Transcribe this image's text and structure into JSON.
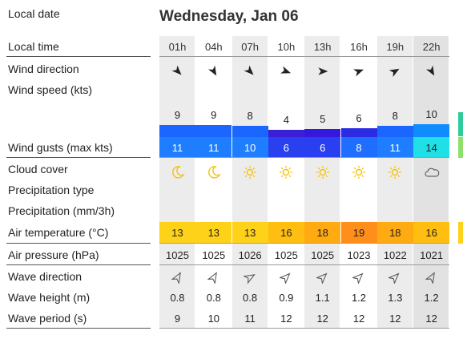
{
  "labels": {
    "local_date": "Local date",
    "local_time": "Local time",
    "wind_direction": "Wind direction",
    "wind_speed": "Wind speed  (kts)",
    "wind_gusts": "Wind gusts  (max kts)",
    "cloud_cover": "Cloud cover",
    "precip_type": "Precipitation type",
    "precipitation": "Precipitation  (mm/3h)",
    "air_temp": "Air temperature  (°C)",
    "air_pressure": "Air pressure  (hPa)",
    "wave_direction": "Wave direction",
    "wave_height": "Wave height  (m)",
    "wave_period": "Wave period  (s)"
  },
  "date": "Wednesday, Jan 06",
  "hours": [
    "01h",
    "04h",
    "07h",
    "10h",
    "13h",
    "16h",
    "19h",
    "22h"
  ],
  "wind_dir_deg": [
    135,
    150,
    135,
    110,
    90,
    70,
    60,
    150
  ],
  "wind_speed": [
    "9",
    "9",
    "8",
    "4",
    "5",
    "6",
    "8",
    "10"
  ],
  "wind_gusts": [
    "11",
    "11",
    "10",
    "6",
    "6",
    "8",
    "11",
    "14"
  ],
  "cloud_cover": [
    "moon-icon",
    "moon-icon",
    "sun-icon",
    "sun-icon",
    "sun-icon",
    "sun-icon",
    "sun-icon",
    "cloud-icon"
  ],
  "air_temp": [
    "13",
    "13",
    "13",
    "16",
    "18",
    "19",
    "18",
    "16"
  ],
  "air_pressure": [
    "1025",
    "1025",
    "1026",
    "1025",
    "1025",
    "1023",
    "1022",
    "1021"
  ],
  "wave_dir_deg": [
    30,
    30,
    60,
    45,
    45,
    45,
    45,
    30
  ],
  "wave_height": [
    "0.8",
    "0.8",
    "0.8",
    "0.9",
    "1.1",
    "1.2",
    "1.3",
    "1.2"
  ],
  "wave_period": [
    "9",
    "10",
    "11",
    "12",
    "12",
    "12",
    "12",
    "12"
  ],
  "colors": {
    "speed_bar": [
      "#1a66ff",
      "#1a66ff",
      "#1a66ff",
      "#3b1fd6",
      "#3517dd",
      "#2a2be3",
      "#1a66ff",
      "#0f8cff"
    ],
    "gust_bg": [
      "#1f7dff",
      "#1f7dff",
      "#1f7dff",
      "#2a3ff0",
      "#2a3ff0",
      "#1f6eff",
      "#1f7dff",
      "#1fe0e6"
    ],
    "gust_text": [
      "#ffffff",
      "#ffffff",
      "#ffffff",
      "#ffffff",
      "#ffffff",
      "#ffffff",
      "#ffffff",
      "#222222"
    ],
    "temp_bg": [
      "#ffd21a",
      "#ffd21a",
      "#ffd21a",
      "#ffbe10",
      "#ffaa10",
      "#ff8f1a",
      "#ffaa10",
      "#ffbe10"
    ],
    "sun": "#f4c20d",
    "arrow": "#222222",
    "wave_arrow": "#555555",
    "edge": [
      "#2fcc9a",
      "#8ee06a",
      "#ffd21a"
    ]
  }
}
